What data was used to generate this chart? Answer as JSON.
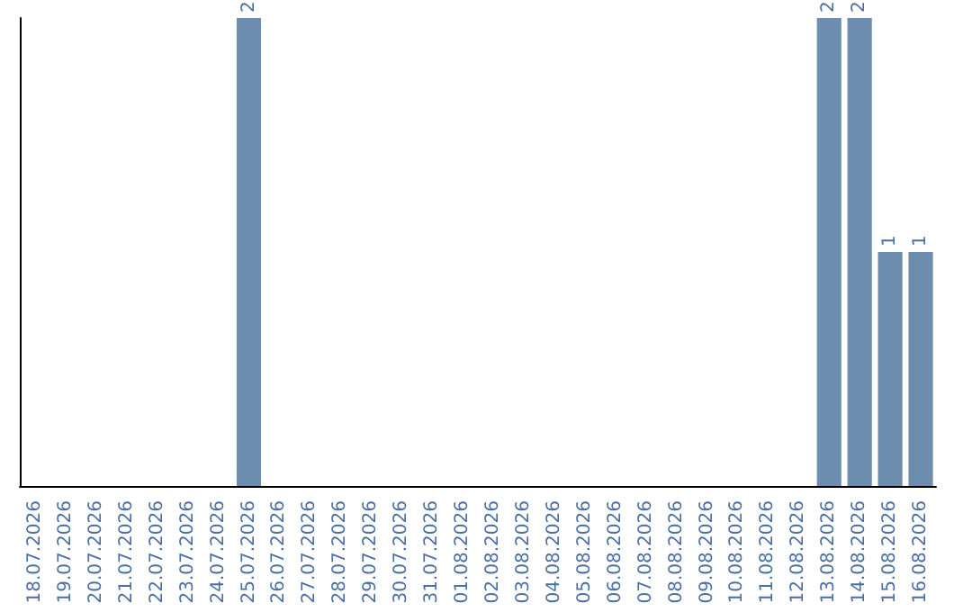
{
  "chart_data": {
    "type": "bar",
    "categories": [
      "18.07.2026",
      "19.07.2026",
      "20.07.2026",
      "21.07.2026",
      "22.07.2026",
      "23.07.2026",
      "24.07.2026",
      "25.07.2026",
      "26.07.2026",
      "27.07.2026",
      "28.07.2026",
      "29.07.2026",
      "30.07.2026",
      "31.07.2026",
      "01.08.2026",
      "02.08.2026",
      "03.08.2026",
      "04.08.2026",
      "05.08.2026",
      "06.08.2026",
      "07.08.2026",
      "08.08.2026",
      "09.08.2026",
      "10.08.2026",
      "11.08.2026",
      "12.08.2026",
      "13.08.2026",
      "14.08.2026",
      "15.08.2026",
      "16.08.2026"
    ],
    "values": [
      0,
      0,
      0,
      0,
      0,
      0,
      0,
      2,
      0,
      0,
      0,
      0,
      0,
      0,
      0,
      0,
      0,
      0,
      0,
      0,
      0,
      0,
      0,
      0,
      0,
      0,
      2,
      2,
      1,
      1
    ],
    "value_labels": [
      null,
      null,
      null,
      null,
      null,
      null,
      null,
      "2",
      null,
      null,
      null,
      null,
      null,
      null,
      null,
      null,
      null,
      null,
      null,
      null,
      null,
      null,
      null,
      null,
      null,
      null,
      "2",
      "2",
      "1",
      "1"
    ],
    "color": "#6d8dae"
  }
}
